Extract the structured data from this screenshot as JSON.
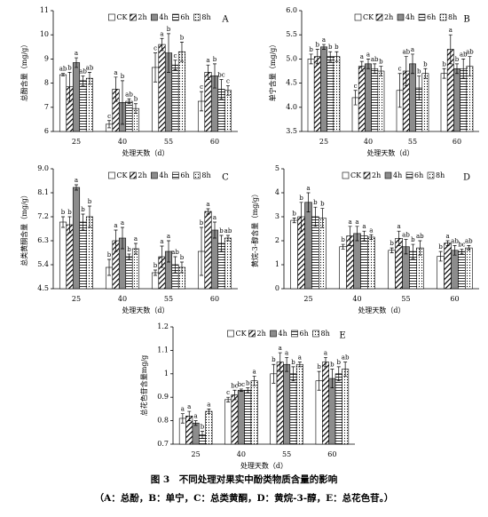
{
  "chart_data": [
    {
      "type": "bar",
      "panel": "A",
      "ylabel": "总酚含量（mg/g）",
      "xlabel": "处理天数（d）",
      "categories": [
        "25",
        "40",
        "55",
        "60"
      ],
      "ylim": [
        6,
        11
      ],
      "yticks": [
        6,
        7,
        8,
        9,
        10,
        11
      ],
      "series": [
        {
          "name": "CK",
          "color": "#ffffff",
          "pattern": "none",
          "values": [
            8.35,
            6.3,
            8.65,
            7.25
          ],
          "errors": [
            0.05,
            0.15,
            0.6,
            0.4
          ],
          "letters": [
            "ab",
            "c",
            "c",
            "c"
          ]
        },
        {
          "name": "2h",
          "color": "#000000",
          "pattern": "diagonal",
          "values": [
            7.85,
            7.75,
            9.6,
            8.45
          ],
          "errors": [
            0.6,
            0.5,
            0.25,
            0.3
          ],
          "letters": [
            "b",
            "a",
            "a",
            "a"
          ]
        },
        {
          "name": "4h",
          "color": "#8c8c8c",
          "pattern": "none",
          "values": [
            8.85,
            7.2,
            9.25,
            8.3
          ],
          "errors": [
            0.2,
            0.9,
            0.8,
            0.5
          ],
          "letters": [
            "a",
            "b",
            "b",
            "b"
          ]
        },
        {
          "name": "6h",
          "color": "#000000",
          "pattern": "horizontal",
          "values": [
            8.1,
            7.25,
            8.75,
            7.75
          ],
          "errors": [
            0.2,
            0.1,
            0.2,
            0.4
          ],
          "letters": [
            "ab",
            "ab",
            "c",
            "bc"
          ]
        },
        {
          "name": "8h",
          "color": "#000000",
          "pattern": "dots",
          "values": [
            8.2,
            6.95,
            9.3,
            7.7
          ],
          "errors": [
            0.25,
            0.2,
            0.4,
            0.2
          ],
          "letters": [
            "ab",
            "b",
            "b",
            "c"
          ]
        }
      ]
    },
    {
      "type": "bar",
      "panel": "B",
      "ylabel": "单宁含量（mg/g）",
      "xlabel": "处理天数（d）",
      "categories": [
        "25",
        "40",
        "55",
        "60"
      ],
      "ylim": [
        3.5,
        6
      ],
      "yticks": [
        3.5,
        {
          "value": 4,
          "label": "4.0"
        },
        4.5,
        {
          "value": 5,
          "label": "5.0"
        },
        5.5,
        {
          "value": 6,
          "label": "6.0"
        }
      ],
      "series": [
        {
          "name": "CK",
          "color": "#ffffff",
          "pattern": "none",
          "values": [
            5.0,
            4.2,
            4.35,
            4.7
          ],
          "errors": [
            0.1,
            0.15,
            0.35,
            0.1
          ],
          "letters": [
            "b",
            "c",
            "c",
            "b"
          ]
        },
        {
          "name": "2h",
          "color": "#000000",
          "pattern": "diagonal",
          "values": [
            5.05,
            4.85,
            4.75,
            5.2
          ],
          "errors": [
            0.15,
            0.1,
            0.3,
            0.3
          ],
          "letters": [
            "b",
            "a",
            "ab",
            "a"
          ]
        },
        {
          "name": "4h",
          "color": "#8c8c8c",
          "pattern": "none",
          "values": [
            5.25,
            4.9,
            4.9,
            4.8
          ],
          "errors": [
            0.05,
            0.1,
            0.2,
            0.1
          ],
          "letters": [
            "a",
            "a",
            "a",
            "b"
          ]
        },
        {
          "name": "6h",
          "color": "#000000",
          "pattern": "horizontal",
          "values": [
            5.05,
            4.8,
            4.4,
            4.8
          ],
          "errors": [
            0.1,
            0.1,
            0.25,
            0.2
          ],
          "letters": [
            "b",
            "ab",
            "b",
            "ab"
          ]
        },
        {
          "name": "8h",
          "color": "#000000",
          "pattern": "dots",
          "values": [
            5.05,
            4.75,
            4.7,
            4.85
          ],
          "errors": [
            0.1,
            0.1,
            0.1,
            0.2
          ],
          "letters": [
            "b",
            "b",
            "b",
            "ab"
          ]
        }
      ]
    },
    {
      "type": "bar",
      "panel": "C",
      "ylabel": "总类黄酮含量（mg/g）",
      "xlabel": "处理天数（d）",
      "categories": [
        "25",
        "40",
        "55",
        "60"
      ],
      "ylim": [
        4.5,
        9
      ],
      "yticks": [
        4.5,
        5.4,
        6.3,
        7.2,
        8.1,
        {
          "value": 9,
          "label": "9.0"
        }
      ],
      "series": [
        {
          "name": "CK",
          "color": "#ffffff",
          "pattern": "none",
          "values": [
            7.0,
            5.3,
            5.1,
            5.9
          ],
          "errors": [
            0.2,
            0.3,
            0.1,
            0.9
          ],
          "letters": [
            "b",
            "b",
            "b",
            "b"
          ]
        },
        {
          "name": "2h",
          "color": "#000000",
          "pattern": "diagonal",
          "values": [
            6.9,
            6.3,
            5.7,
            7.4
          ],
          "errors": [
            0.3,
            0.4,
            0.4,
            0.1
          ],
          "letters": [
            "b",
            "a",
            "a",
            "a"
          ]
        },
        {
          "name": "4h",
          "color": "#8c8c8c",
          "pattern": "none",
          "values": [
            8.3,
            6.4,
            5.9,
            6.7
          ],
          "errors": [
            0.1,
            0.4,
            0.4,
            0.3
          ],
          "letters": [
            "a",
            "a",
            "a",
            "a"
          ]
        },
        {
          "name": "6h",
          "color": "#000000",
          "pattern": "horizontal",
          "values": [
            7.0,
            5.7,
            5.4,
            6.2
          ],
          "errors": [
            0.3,
            0.1,
            0.3,
            0.3
          ],
          "letters": [
            "b",
            "b",
            "ab",
            "b"
          ]
        },
        {
          "name": "8h",
          "color": "#000000",
          "pattern": "dots",
          "values": [
            7.2,
            6.0,
            5.3,
            6.4
          ],
          "errors": [
            0.4,
            0.2,
            0.2,
            0.1
          ],
          "letters": [
            "b",
            "a",
            "b",
            "ab"
          ]
        }
      ]
    },
    {
      "type": "bar",
      "panel": "D",
      "ylabel": "黄烷-3-醇含量（mg/g）",
      "xlabel": "处理天数（d）",
      "categories": [
        "25",
        "40",
        "55",
        "60"
      ],
      "ylim": [
        0,
        5
      ],
      "yticks": [
        0,
        1,
        2,
        3,
        4,
        5
      ],
      "series": [
        {
          "name": "CK",
          "color": "#ffffff",
          "pattern": "none",
          "values": [
            2.85,
            1.75,
            1.6,
            1.35
          ],
          "errors": [
            0.1,
            0.1,
            0.1,
            0.2
          ],
          "letters": [
            "b",
            "b",
            "b",
            "b"
          ]
        },
        {
          "name": "2h",
          "color": "#000000",
          "pattern": "diagonal",
          "values": [
            3.0,
            2.2,
            2.1,
            1.9
          ],
          "errors": [
            0.6,
            0.4,
            0.3,
            0.1
          ],
          "letters": [
            "b",
            "a",
            "a",
            "a"
          ]
        },
        {
          "name": "4h",
          "color": "#8c8c8c",
          "pattern": "none",
          "values": [
            3.6,
            2.3,
            1.75,
            1.6
          ],
          "errors": [
            0.4,
            0.3,
            0.3,
            0.2
          ],
          "letters": [
            "a",
            "a",
            "ab",
            "ab"
          ]
        },
        {
          "name": "6h",
          "color": "#000000",
          "pattern": "horizontal",
          "values": [
            3.0,
            2.2,
            1.55,
            1.55
          ],
          "errors": [
            0.4,
            0.2,
            0.3,
            0.1
          ],
          "letters": [
            "b",
            "a",
            "b",
            "bc"
          ]
        },
        {
          "name": "8h",
          "color": "#000000",
          "pattern": "dots",
          "values": [
            2.95,
            2.15,
            1.7,
            1.7
          ],
          "errors": [
            0.4,
            0.1,
            0.3,
            0.1
          ],
          "letters": [
            "b",
            "a",
            "ab",
            "ab"
          ]
        }
      ]
    },
    {
      "type": "bar",
      "panel": "E",
      "ylabel": "总花色苷含量mg/g",
      "xlabel": "处理天数（d）",
      "categories": [
        "25",
        "40",
        "55",
        "60"
      ],
      "ylim": [
        0.7,
        1.2
      ],
      "yticks": [
        0.7,
        0.8,
        0.9,
        1,
        1.1,
        1.2
      ],
      "series": [
        {
          "name": "CK",
          "color": "#ffffff",
          "pattern": "none",
          "values": [
            0.81,
            0.89,
            1.0,
            0.97
          ],
          "errors": [
            0.02,
            0.01,
            0.04,
            0.04
          ],
          "letters": [
            "a",
            "c",
            "b",
            "b"
          ]
        },
        {
          "name": "2h",
          "color": "#000000",
          "pattern": "diagonal",
          "values": [
            0.82,
            0.91,
            1.05,
            1.05
          ],
          "errors": [
            0.02,
            0.02,
            0.04,
            0.02
          ],
          "letters": [
            "a",
            "bc",
            "a",
            "a"
          ]
        },
        {
          "name": "4h",
          "color": "#8c8c8c",
          "pattern": "none",
          "values": [
            0.79,
            0.93,
            1.04,
            0.98
          ],
          "errors": [
            0.01,
            0.005,
            0.03,
            0.04
          ],
          "letters": [
            "a",
            "bc",
            "a",
            "b"
          ]
        },
        {
          "name": "6h",
          "color": "#000000",
          "pattern": "horizontal",
          "values": [
            0.74,
            0.93,
            1.0,
            1.0
          ],
          "errors": [
            0.015,
            0.01,
            0.03,
            0.03
          ],
          "letters": [
            "b",
            "b",
            "b",
            "b"
          ]
        },
        {
          "name": "8h",
          "color": "#000000",
          "pattern": "dots",
          "values": [
            0.84,
            0.97,
            1.04,
            1.02
          ],
          "errors": [
            0.01,
            0.02,
            0.01,
            0.03
          ],
          "letters": [
            "a",
            "a",
            "a",
            "ab"
          ]
        }
      ]
    }
  ],
  "caption": {
    "title": "图 3　不同处理对果实中酚类物质含量的影响",
    "note": "（A：总酚，B：单宁，C：总类黄酮，D：黄烷-3-醇，E：总花色苷。）"
  }
}
